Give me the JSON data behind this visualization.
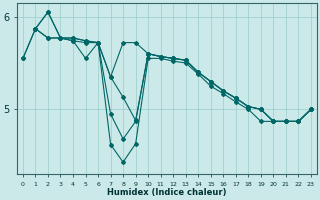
{
  "xlabel": "Humidex (Indice chaleur)",
  "ylabel": "",
  "bg_color": "#cce9e9",
  "line_color": "#006666",
  "grid_color": "#99cccc",
  "lines": [
    {
      "x": [
        0,
        1,
        2,
        3,
        4,
        5,
        6,
        7,
        8,
        9,
        10,
        11,
        12,
        13,
        14,
        15,
        16,
        17,
        18,
        19,
        20,
        21,
        22,
        23
      ],
      "y": [
        5.55,
        5.87,
        6.05,
        5.77,
        5.77,
        5.74,
        5.72,
        5.35,
        5.72,
        5.72,
        5.6,
        5.57,
        5.55,
        5.53,
        5.4,
        5.3,
        5.2,
        5.12,
        5.03,
        5.0,
        4.87,
        4.87,
        4.87,
        5.0
      ]
    },
    {
      "x": [
        0,
        1,
        2,
        3,
        4,
        5,
        6,
        7,
        8,
        9,
        10,
        11,
        12,
        13,
        14,
        15,
        16,
        17,
        18,
        19,
        20,
        21,
        22,
        23
      ],
      "y": [
        5.55,
        5.87,
        6.05,
        5.77,
        5.77,
        5.74,
        5.72,
        5.35,
        5.13,
        4.88,
        5.6,
        5.57,
        5.55,
        5.53,
        5.4,
        5.3,
        5.2,
        5.12,
        5.03,
        5.0,
        4.87,
        4.87,
        4.87,
        5.0
      ]
    },
    {
      "x": [
        1,
        2,
        3,
        4,
        5,
        6,
        7,
        8,
        9,
        10,
        11,
        12,
        13,
        14,
        15,
        16,
        17,
        18,
        19,
        20,
        21,
        22,
        23
      ],
      "y": [
        5.87,
        5.77,
        5.77,
        5.74,
        5.72,
        5.72,
        4.95,
        4.68,
        4.87,
        5.6,
        5.57,
        5.55,
        5.53,
        5.4,
        5.3,
        5.2,
        5.12,
        5.03,
        5.0,
        4.87,
        4.87,
        4.87,
        5.0
      ]
    },
    {
      "x": [
        1,
        2,
        3,
        4,
        5,
        6,
        7,
        8,
        9,
        10,
        11,
        12,
        13,
        14,
        15,
        16,
        17,
        18,
        19,
        20,
        21,
        22,
        23
      ],
      "y": [
        5.87,
        5.77,
        5.77,
        5.74,
        5.55,
        5.72,
        4.62,
        4.43,
        4.63,
        5.55,
        5.55,
        5.52,
        5.5,
        5.38,
        5.25,
        5.17,
        5.08,
        5.0,
        4.87,
        4.87,
        4.87,
        4.87,
        5.0
      ]
    }
  ],
  "ylim": [
    4.3,
    6.15
  ],
  "xlim": [
    -0.5,
    23.5
  ],
  "yticks": [
    5,
    6
  ],
  "xticks": [
    0,
    1,
    2,
    3,
    4,
    5,
    6,
    7,
    8,
    9,
    10,
    11,
    12,
    13,
    14,
    15,
    16,
    17,
    18,
    19,
    20,
    21,
    22,
    23
  ],
  "xtick_labels": [
    "0",
    "1",
    "2",
    "3",
    "4",
    "5",
    "6",
    "7",
    "8",
    "9",
    "10",
    "11",
    "12",
    "13",
    "14",
    "15",
    "16",
    "17",
    "18",
    "19",
    "20",
    "21",
    "22",
    "23"
  ]
}
